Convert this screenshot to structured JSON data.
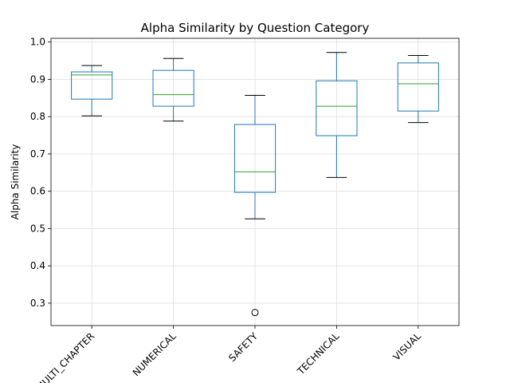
{
  "chart_data": {
    "type": "box",
    "title": "Alpha Similarity by Question Category",
    "xlabel": "",
    "ylabel": "Alpha Similarity",
    "ylim": [
      0.24,
      1.01
    ],
    "yticks": [
      0.3,
      0.4,
      0.5,
      0.6,
      0.7,
      0.8,
      0.9,
      1.0
    ],
    "ytick_labels": [
      "0.3",
      "0.4",
      "0.5",
      "0.6",
      "0.7",
      "0.8",
      "0.9",
      "1.0"
    ],
    "grid": true,
    "categories": [
      "MULTI_CHAPTER",
      "NUMERICAL",
      "SAFETY",
      "TECHNICAL",
      "VISUAL"
    ],
    "boxes": [
      {
        "whisker_low": 0.802,
        "q1": 0.847,
        "median": 0.912,
        "q3": 0.92,
        "whisker_high": 0.937,
        "outliers": []
      },
      {
        "whisker_low": 0.788,
        "q1": 0.828,
        "median": 0.859,
        "q3": 0.924,
        "whisker_high": 0.956,
        "outliers": []
      },
      {
        "whisker_low": 0.526,
        "q1": 0.597,
        "median": 0.652,
        "q3": 0.779,
        "whisker_high": 0.857,
        "outliers": [
          0.275
        ]
      },
      {
        "whisker_low": 0.637,
        "q1": 0.749,
        "median": 0.828,
        "q3": 0.896,
        "whisker_high": 0.972,
        "outliers": []
      },
      {
        "whisker_low": 0.784,
        "q1": 0.815,
        "median": 0.888,
        "q3": 0.944,
        "whisker_high": 0.964,
        "outliers": []
      }
    ],
    "colors": {
      "box": "#1f77b4",
      "median": "#2ca02c",
      "whisker": "#000000",
      "grid": "#e0e0e0"
    }
  }
}
